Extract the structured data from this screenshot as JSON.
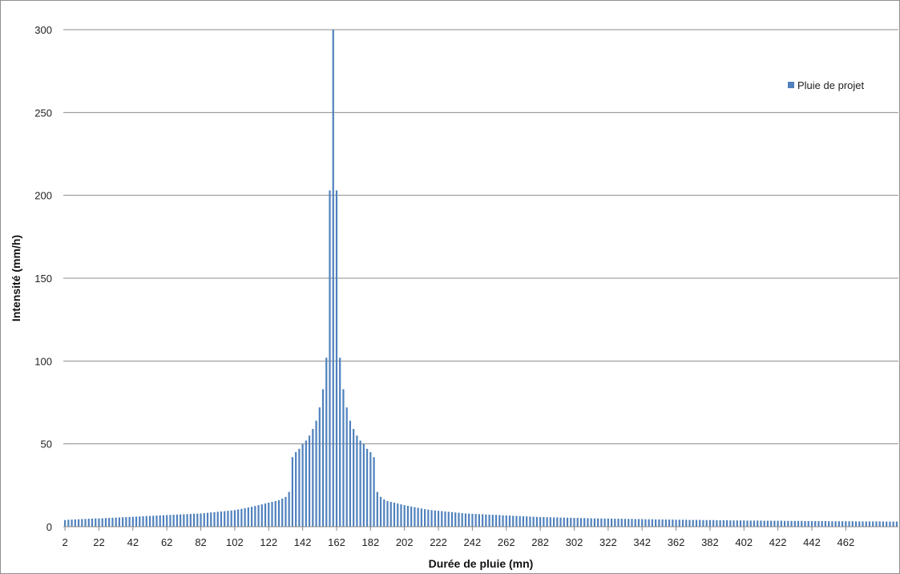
{
  "chart_data": {
    "type": "bar",
    "title": "",
    "xlabel": "Durée de pluie (mn)",
    "ylabel": "Intensité (mm/h)",
    "ylim": [
      0,
      300
    ],
    "yticks": [
      0,
      50,
      100,
      150,
      200,
      250,
      300
    ],
    "grid": true,
    "legend_position": "top-right",
    "bar_color": "#4f81bd",
    "x_first": 2,
    "x_step": 2,
    "x_tick_labels": [
      "2",
      "22",
      "42",
      "62",
      "82",
      "102",
      "122",
      "142",
      "162",
      "182",
      "202",
      "222",
      "242",
      "262",
      "282",
      "302",
      "322",
      "342",
      "362",
      "382",
      "402",
      "422",
      "442",
      "462"
    ],
    "series": [
      {
        "name": "Pluie de projet",
        "values": [
          4.0,
          4.2,
          4.3,
          4.4,
          4.5,
          4.6,
          4.7,
          4.8,
          4.9,
          5.0,
          5.0,
          5.1,
          5.2,
          5.3,
          5.4,
          5.5,
          5.6,
          5.7,
          5.8,
          5.9,
          6.0,
          6.1,
          6.2,
          6.3,
          6.4,
          6.5,
          6.6,
          6.7,
          6.8,
          6.9,
          7.0,
          7.1,
          7.2,
          7.3,
          7.4,
          7.5,
          7.6,
          7.7,
          7.8,
          7.9,
          8.0,
          8.2,
          8.4,
          8.6,
          8.8,
          9.0,
          9.2,
          9.4,
          9.6,
          9.8,
          10.0,
          10.4,
          10.8,
          11.2,
          11.6,
          12.0,
          12.5,
          13.0,
          13.5,
          14.0,
          14.5,
          15.0,
          15.5,
          16.0,
          17.0,
          18.0,
          21.0,
          42.0,
          45.0,
          47.0,
          50.0,
          52.0,
          55.0,
          59.0,
          64.0,
          72.0,
          83.0,
          102.0,
          203.0,
          300.0,
          203.0,
          102.0,
          83.0,
          72.0,
          64.0,
          59.0,
          55.0,
          52.0,
          50.0,
          47.0,
          45.0,
          42.0,
          21.0,
          18.0,
          16.5,
          15.5,
          15.0,
          14.5,
          14.0,
          13.5,
          13.0,
          12.6,
          12.2,
          11.8,
          11.4,
          11.0,
          10.6,
          10.3,
          10.0,
          9.8,
          9.6,
          9.4,
          9.2,
          9.0,
          8.8,
          8.6,
          8.4,
          8.2,
          8.0,
          7.9,
          7.8,
          7.7,
          7.6,
          7.5,
          7.4,
          7.3,
          7.2,
          7.1,
          7.0,
          6.9,
          6.8,
          6.7,
          6.6,
          6.5,
          6.4,
          6.3,
          6.2,
          6.1,
          6.0,
          5.9,
          5.8,
          5.8,
          5.7,
          5.7,
          5.6,
          5.6,
          5.5,
          5.5,
          5.4,
          5.4,
          5.3,
          5.3,
          5.2,
          5.2,
          5.1,
          5.1,
          5.0,
          5.0,
          5.0,
          4.9,
          4.9,
          4.9,
          4.8,
          4.8,
          4.8,
          4.7,
          4.7,
          4.7,
          4.6,
          4.6,
          4.6,
          4.5,
          4.5,
          4.5,
          4.4,
          4.4,
          4.4,
          4.3,
          4.3,
          4.3,
          4.2,
          4.2,
          4.2,
          4.2,
          4.1,
          4.1,
          4.1,
          4.1,
          4.0,
          4.0,
          4.0,
          4.0,
          3.9,
          3.9,
          3.9,
          3.9,
          3.8,
          3.8,
          3.8,
          3.8,
          3.8,
          3.7,
          3.7,
          3.7,
          3.7,
          3.7,
          3.6,
          3.6,
          3.6,
          3.6,
          3.6,
          3.6,
          3.5,
          3.5,
          3.5,
          3.5,
          3.5,
          3.5,
          3.4,
          3.4,
          3.4,
          3.4,
          3.4,
          3.4,
          3.4,
          3.3,
          3.3,
          3.3,
          3.3,
          3.3,
          3.3,
          3.3,
          3.3,
          3.2,
          3.2,
          3.2,
          3.2,
          3.2,
          3.2,
          3.2,
          3.2,
          3.2,
          3.1,
          3.1,
          3.1,
          3.1
        ]
      }
    ]
  }
}
